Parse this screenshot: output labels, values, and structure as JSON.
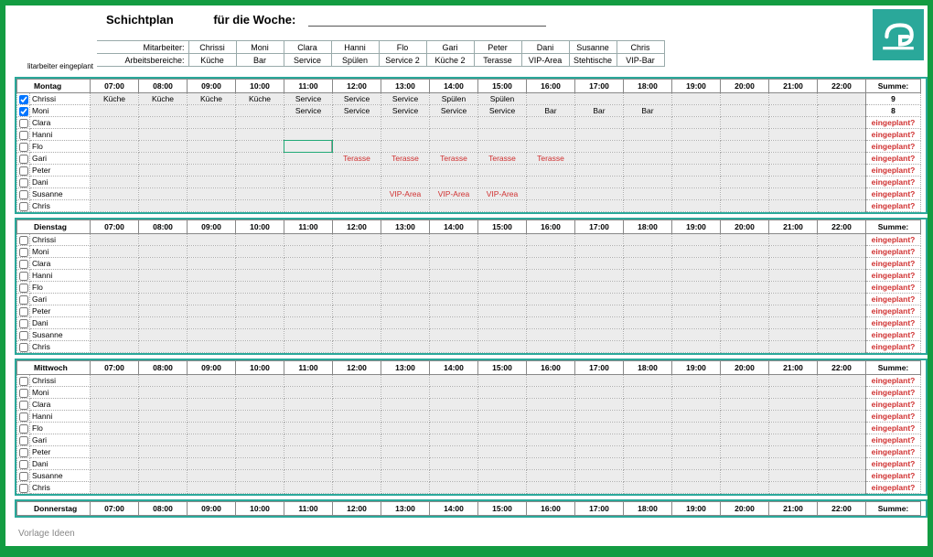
{
  "title1": "Schichtplan",
  "title2": "für die Woche:",
  "side_label1": "litarbeiter eingeplant",
  "side_label2": "v",
  "mapping_label1": "Mitarbeiter:",
  "mapping_label2": "Arbeitsbereiche:",
  "employees": [
    "Chrissi",
    "Moni",
    "Clara",
    "Hanni",
    "Flo",
    "Gari",
    "Peter",
    "Dani",
    "Susanne",
    "Chris"
  ],
  "areas": [
    "Küche",
    "Bar",
    "Service",
    "Spülen",
    "Service 2",
    "Küche 2",
    "Terasse",
    "VIP-Area",
    "Stehtische",
    "VIP-Bar"
  ],
  "hours": [
    "07:00",
    "08:00",
    "09:00",
    "10:00",
    "11:00",
    "12:00",
    "13:00",
    "14:00",
    "15:00",
    "16:00",
    "17:00",
    "18:00",
    "19:00",
    "20:00",
    "21:00",
    "22:00"
  ],
  "sum_label": "Summe:",
  "eingeplant": "eingeplant?",
  "watermark": "Vorlage Ideen",
  "days": [
    {
      "name": "Montag",
      "rows": [
        {
          "emp": "Chrissi",
          "checked": true,
          "sum": "9",
          "cells": [
            "Küche",
            "Küche",
            "Küche",
            "Küche",
            "Service",
            "Service",
            "Service",
            "Spülen",
            "Spülen",
            "",
            "",
            "",
            "",
            "",
            "",
            ""
          ]
        },
        {
          "emp": "Moni",
          "checked": true,
          "sum": "8",
          "cells": [
            "",
            "",
            "",
            "",
            "Service",
            "Service",
            "Service",
            "Service",
            "Service",
            "Bar",
            "Bar",
            "Bar",
            "",
            "",
            "",
            ""
          ]
        },
        {
          "emp": "Clara",
          "checked": false,
          "sum": "eingeplant?",
          "cells": [
            "",
            "",
            "",
            "",
            "",
            "",
            "",
            "",
            "",
            "",
            "",
            "",
            "",
            "",
            "",
            ""
          ]
        },
        {
          "emp": "Hanni",
          "checked": false,
          "sum": "eingeplant?",
          "cells": [
            "",
            "",
            "",
            "",
            "",
            "",
            "",
            "",
            "",
            "",
            "",
            "",
            "",
            "",
            "",
            ""
          ]
        },
        {
          "emp": "Flo",
          "checked": false,
          "sum": "eingeplant?",
          "selected": 4,
          "cells": [
            "",
            "",
            "",
            "",
            "",
            "",
            "",
            "",
            "",
            "",
            "",
            "",
            "",
            "",
            "",
            ""
          ]
        },
        {
          "emp": "Gari",
          "checked": false,
          "sum": "eingeplant?",
          "red": true,
          "cells": [
            "",
            "",
            "",
            "",
            "",
            "Terasse",
            "Terasse",
            "Terasse",
            "Terasse",
            "Terasse",
            "",
            "",
            "",
            "",
            "",
            ""
          ]
        },
        {
          "emp": "Peter",
          "checked": false,
          "sum": "eingeplant?",
          "cells": [
            "",
            "",
            "",
            "",
            "",
            "",
            "",
            "",
            "",
            "",
            "",
            "",
            "",
            "",
            "",
            ""
          ]
        },
        {
          "emp": "Dani",
          "checked": false,
          "sum": "eingeplant?",
          "cells": [
            "",
            "",
            "",
            "",
            "",
            "",
            "",
            "",
            "",
            "",
            "",
            "",
            "",
            "",
            "",
            ""
          ]
        },
        {
          "emp": "Susanne",
          "checked": false,
          "sum": "eingeplant?",
          "red": true,
          "cells": [
            "",
            "",
            "",
            "",
            "",
            "",
            "VIP-Area",
            "VIP-Area",
            "VIP-Area",
            "",
            "",
            "",
            "",
            "",
            "",
            ""
          ]
        },
        {
          "emp": "Chris",
          "checked": false,
          "sum": "eingeplant?",
          "cells": [
            "",
            "",
            "",
            "",
            "",
            "",
            "",
            "",
            "",
            "",
            "",
            "",
            "",
            "",
            "",
            ""
          ]
        }
      ]
    },
    {
      "name": "Dienstag",
      "rows": [
        {
          "emp": "Chrissi",
          "checked": false,
          "sum": "eingeplant?",
          "cells": [
            "",
            "",
            "",
            "",
            "",
            "",
            "",
            "",
            "",
            "",
            "",
            "",
            "",
            "",
            "",
            ""
          ]
        },
        {
          "emp": "Moni",
          "checked": false,
          "sum": "eingeplant?",
          "cells": [
            "",
            "",
            "",
            "",
            "",
            "",
            "",
            "",
            "",
            "",
            "",
            "",
            "",
            "",
            "",
            ""
          ]
        },
        {
          "emp": "Clara",
          "checked": false,
          "sum": "eingeplant?",
          "cells": [
            "",
            "",
            "",
            "",
            "",
            "",
            "",
            "",
            "",
            "",
            "",
            "",
            "",
            "",
            "",
            ""
          ]
        },
        {
          "emp": "Hanni",
          "checked": false,
          "sum": "eingeplant?",
          "cells": [
            "",
            "",
            "",
            "",
            "",
            "",
            "",
            "",
            "",
            "",
            "",
            "",
            "",
            "",
            "",
            ""
          ]
        },
        {
          "emp": "Flo",
          "checked": false,
          "sum": "eingeplant?",
          "cells": [
            "",
            "",
            "",
            "",
            "",
            "",
            "",
            "",
            "",
            "",
            "",
            "",
            "",
            "",
            "",
            ""
          ]
        },
        {
          "emp": "Gari",
          "checked": false,
          "sum": "eingeplant?",
          "cells": [
            "",
            "",
            "",
            "",
            "",
            "",
            "",
            "",
            "",
            "",
            "",
            "",
            "",
            "",
            "",
            ""
          ]
        },
        {
          "emp": "Peter",
          "checked": false,
          "sum": "eingeplant?",
          "cells": [
            "",
            "",
            "",
            "",
            "",
            "",
            "",
            "",
            "",
            "",
            "",
            "",
            "",
            "",
            "",
            ""
          ]
        },
        {
          "emp": "Dani",
          "checked": false,
          "sum": "eingeplant?",
          "cells": [
            "",
            "",
            "",
            "",
            "",
            "",
            "",
            "",
            "",
            "",
            "",
            "",
            "",
            "",
            "",
            ""
          ]
        },
        {
          "emp": "Susanne",
          "checked": false,
          "sum": "eingeplant?",
          "cells": [
            "",
            "",
            "",
            "",
            "",
            "",
            "",
            "",
            "",
            "",
            "",
            "",
            "",
            "",
            "",
            ""
          ]
        },
        {
          "emp": "Chris",
          "checked": false,
          "sum": "eingeplant?",
          "cells": [
            "",
            "",
            "",
            "",
            "",
            "",
            "",
            "",
            "",
            "",
            "",
            "",
            "",
            "",
            "",
            ""
          ]
        }
      ]
    },
    {
      "name": "Mittwoch",
      "rows": [
        {
          "emp": "Chrissi",
          "checked": false,
          "sum": "eingeplant?",
          "cells": [
            "",
            "",
            "",
            "",
            "",
            "",
            "",
            "",
            "",
            "",
            "",
            "",
            "",
            "",
            "",
            ""
          ]
        },
        {
          "emp": "Moni",
          "checked": false,
          "sum": "eingeplant?",
          "cells": [
            "",
            "",
            "",
            "",
            "",
            "",
            "",
            "",
            "",
            "",
            "",
            "",
            "",
            "",
            "",
            ""
          ]
        },
        {
          "emp": "Clara",
          "checked": false,
          "sum": "eingeplant?",
          "cells": [
            "",
            "",
            "",
            "",
            "",
            "",
            "",
            "",
            "",
            "",
            "",
            "",
            "",
            "",
            "",
            ""
          ]
        },
        {
          "emp": "Hanni",
          "checked": false,
          "sum": "eingeplant?",
          "cells": [
            "",
            "",
            "",
            "",
            "",
            "",
            "",
            "",
            "",
            "",
            "",
            "",
            "",
            "",
            "",
            ""
          ]
        },
        {
          "emp": "Flo",
          "checked": false,
          "sum": "eingeplant?",
          "cells": [
            "",
            "",
            "",
            "",
            "",
            "",
            "",
            "",
            "",
            "",
            "",
            "",
            "",
            "",
            "",
            ""
          ]
        },
        {
          "emp": "Gari",
          "checked": false,
          "sum": "eingeplant?",
          "cells": [
            "",
            "",
            "",
            "",
            "",
            "",
            "",
            "",
            "",
            "",
            "",
            "",
            "",
            "",
            "",
            ""
          ]
        },
        {
          "emp": "Peter",
          "checked": false,
          "sum": "eingeplant?",
          "cells": [
            "",
            "",
            "",
            "",
            "",
            "",
            "",
            "",
            "",
            "",
            "",
            "",
            "",
            "",
            "",
            ""
          ]
        },
        {
          "emp": "Dani",
          "checked": false,
          "sum": "eingeplant?",
          "cells": [
            "",
            "",
            "",
            "",
            "",
            "",
            "",
            "",
            "",
            "",
            "",
            "",
            "",
            "",
            "",
            ""
          ]
        },
        {
          "emp": "Susanne",
          "checked": false,
          "sum": "eingeplant?",
          "cells": [
            "",
            "",
            "",
            "",
            "",
            "",
            "",
            "",
            "",
            "",
            "",
            "",
            "",
            "",
            "",
            ""
          ]
        },
        {
          "emp": "Chris",
          "checked": false,
          "sum": "eingeplant?",
          "cells": [
            "",
            "",
            "",
            "",
            "",
            "",
            "",
            "",
            "",
            "",
            "",
            "",
            "",
            "",
            "",
            ""
          ]
        }
      ]
    },
    {
      "name": "Donnerstag",
      "header_only": true
    }
  ]
}
